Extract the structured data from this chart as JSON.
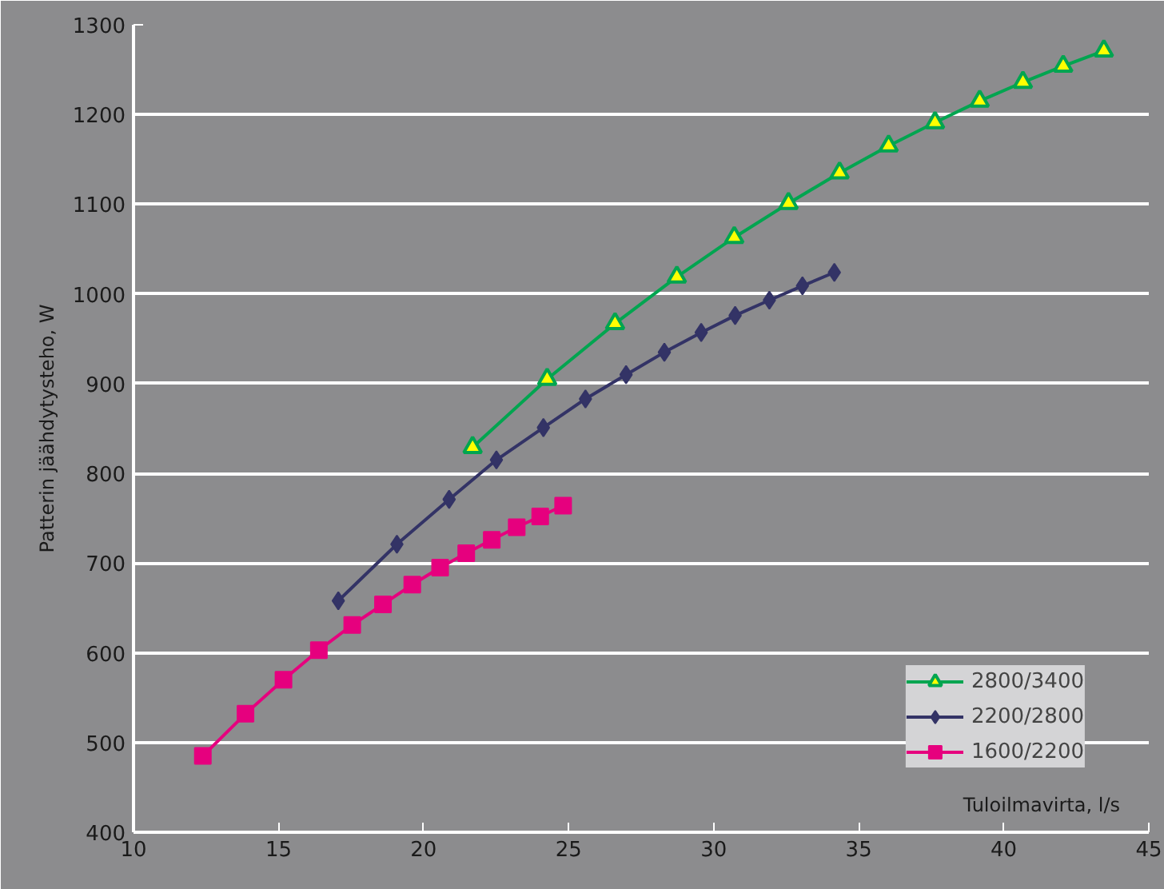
{
  "chart_data": {
    "type": "line",
    "xlabel": "Tuloilmavirta, l/s",
    "ylabel": "Patterin jäähdytysteho, W",
    "xlim": [
      10,
      45
    ],
    "ylim": [
      400,
      1300
    ],
    "xticks": [
      10,
      15,
      20,
      25,
      30,
      35,
      40,
      45
    ],
    "yticks": [
      400,
      500,
      600,
      700,
      800,
      900,
      1000,
      1100,
      1200,
      1300
    ],
    "grid": "y",
    "legend": "bottom right",
    "series": [
      {
        "name": "2800/3400",
        "color": "#00a550",
        "marker": "triangle",
        "x": [
          21.69,
          24.26,
          26.6,
          28.73,
          30.71,
          32.58,
          34.34,
          36.03,
          37.63,
          39.17,
          40.66,
          42.05,
          43.45
        ],
        "values": [
          829,
          905,
          967,
          1019,
          1063,
          1101,
          1135,
          1165,
          1191,
          1215,
          1236,
          1254,
          1271
        ]
      },
      {
        "name": "2200/2800",
        "color": "#333366",
        "marker": "diamond",
        "x": [
          17.06,
          19.08,
          20.88,
          22.51,
          24.13,
          25.58,
          26.98,
          28.3,
          29.57,
          30.74,
          31.92,
          33.06,
          34.16
        ],
        "values": [
          658,
          721,
          771,
          815,
          851,
          883,
          910,
          935,
          957,
          976,
          993,
          1009,
          1024
        ]
      },
      {
        "name": "1600/2200",
        "color": "#e6007e",
        "marker": "square",
        "x": [
          12.39,
          13.86,
          15.17,
          16.39,
          17.54,
          18.6,
          19.61,
          20.57,
          21.47,
          22.35,
          23.21,
          24.02,
          24.81
        ],
        "values": [
          485,
          532,
          570,
          603,
          631,
          654,
          676,
          695,
          711,
          726,
          740,
          752,
          764
        ]
      }
    ]
  }
}
